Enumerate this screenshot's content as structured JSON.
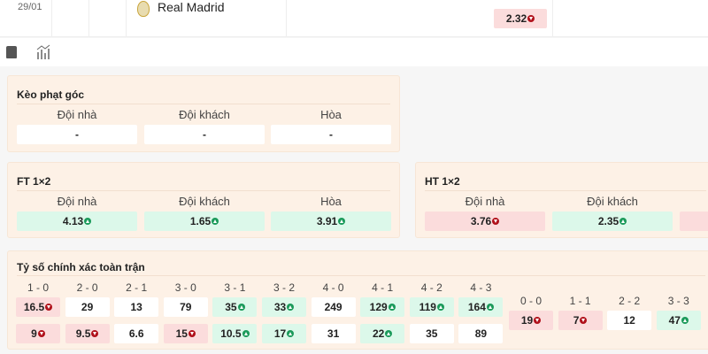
{
  "match": {
    "date": "29/01",
    "team": "Real Madrid",
    "odds": {
      "value": "2.32",
      "trend": "down"
    }
  },
  "toolbar": {
    "icons": [
      "jersey-icon",
      "stats-chart-icon"
    ]
  },
  "corner": {
    "title": "Kèo phạt góc",
    "labels": [
      "Đội nhà",
      "Đội khách",
      "Hòa"
    ],
    "values": [
      "-",
      "-",
      "-"
    ]
  },
  "ft": {
    "title": "FT 1×2",
    "labels": [
      "Đội nhà",
      "Đội khách",
      "Hòa"
    ],
    "cells": [
      {
        "value": "4.13",
        "trend": "up"
      },
      {
        "value": "1.65",
        "trend": "up"
      },
      {
        "value": "3.91",
        "trend": "up"
      }
    ]
  },
  "ht": {
    "title": "HT 1×2",
    "labels": [
      "Đội nhà",
      "Đội khách"
    ],
    "cells": [
      {
        "value": "3.76",
        "trend": "down"
      },
      {
        "value": "2.35",
        "trend": "up"
      }
    ]
  },
  "correct_score": {
    "title": "Tỷ số chính xác toàn trận",
    "columns": [
      {
        "score": "1 - 0",
        "home": {
          "value": "16.5",
          "trend": "down"
        },
        "away": {
          "value": "9",
          "trend": "down"
        }
      },
      {
        "score": "2 - 0",
        "home": {
          "value": "29",
          "trend": ""
        },
        "away": {
          "value": "9.5",
          "trend": "down"
        }
      },
      {
        "score": "2 - 1",
        "home": {
          "value": "13",
          "trend": ""
        },
        "away": {
          "value": "6.6",
          "trend": ""
        }
      },
      {
        "score": "3 - 0",
        "home": {
          "value": "79",
          "trend": ""
        },
        "away": {
          "value": "15",
          "trend": "down"
        }
      },
      {
        "score": "3 - 1",
        "home": {
          "value": "35",
          "trend": "up"
        },
        "away": {
          "value": "10.5",
          "trend": "up"
        }
      },
      {
        "score": "3 - 2",
        "home": {
          "value": "33",
          "trend": "up"
        },
        "away": {
          "value": "17",
          "trend": "up"
        }
      },
      {
        "score": "4 - 0",
        "home": {
          "value": "249",
          "trend": ""
        },
        "away": {
          "value": "31",
          "trend": ""
        }
      },
      {
        "score": "4 - 1",
        "home": {
          "value": "129",
          "trend": "up"
        },
        "away": {
          "value": "22",
          "trend": "up"
        }
      },
      {
        "score": "4 - 2",
        "home": {
          "value": "119",
          "trend": "up"
        },
        "away": {
          "value": "35",
          "trend": ""
        }
      },
      {
        "score": "4 - 3",
        "home": {
          "value": "164",
          "trend": "up"
        },
        "away": {
          "value": "89",
          "trend": ""
        }
      }
    ],
    "draws": [
      {
        "score": "0 - 0",
        "value": "19",
        "trend": "down"
      },
      {
        "score": "1 - 1",
        "value": "7",
        "trend": "down"
      },
      {
        "score": "2 - 2",
        "value": "12",
        "trend": ""
      },
      {
        "score": "3 - 3",
        "value": "47",
        "trend": "up"
      }
    ]
  },
  "colors": {
    "card_bg": "#fdf1e6",
    "up_bg": "#dcf8ea",
    "down_bg": "#fbdcdc",
    "up": "#1a9a5a",
    "down": "#b0101a"
  }
}
